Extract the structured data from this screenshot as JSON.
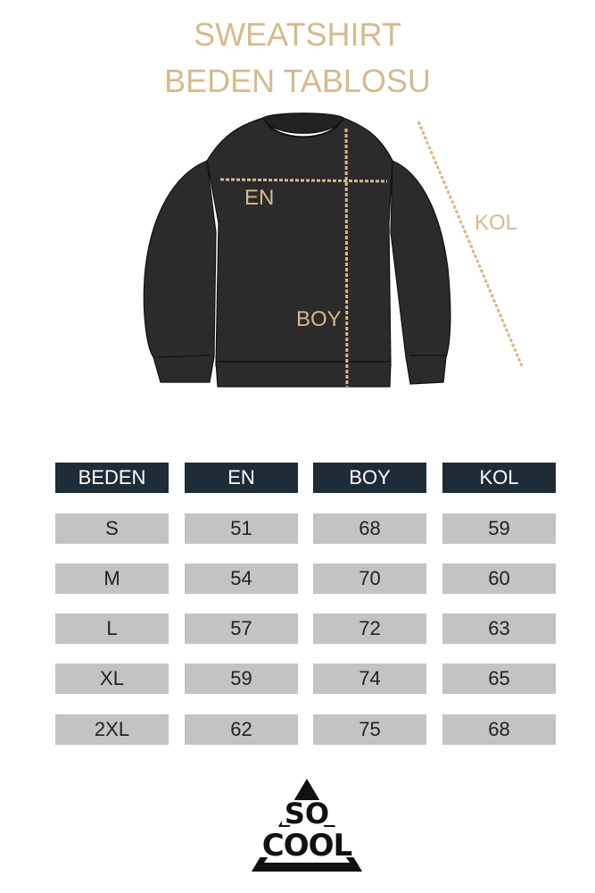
{
  "title": {
    "line1": "SWEATSHIRT",
    "line2": "BEDEN TABLOSU"
  },
  "diagram": {
    "labels": {
      "width": "EN",
      "length": "BOY",
      "sleeve": "KOL"
    }
  },
  "table": {
    "headers": [
      "BEDEN",
      "EN",
      "BOY",
      "KOL"
    ],
    "rows": [
      [
        "S",
        "51",
        "68",
        "59"
      ],
      [
        "M",
        "54",
        "70",
        "60"
      ],
      [
        "L",
        "57",
        "72",
        "63"
      ],
      [
        "XL",
        "59",
        "74",
        "65"
      ],
      [
        "2XL",
        "62",
        "75",
        "68"
      ]
    ]
  },
  "logo": {
    "text": "SO COOL"
  },
  "colors": {
    "accent": "#d6b98f",
    "header_bg": "#1e2c38",
    "row_bg": "#c3c3c3",
    "garment": "#2a2a2a"
  }
}
